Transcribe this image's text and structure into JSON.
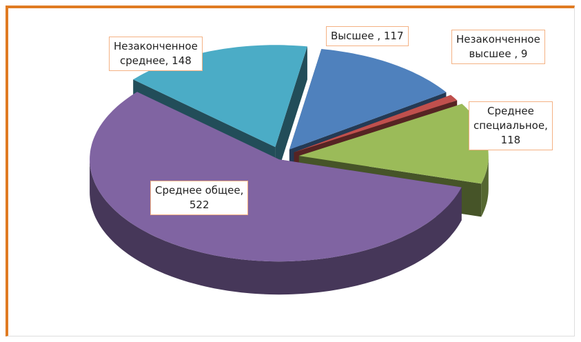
{
  "chart_data": {
    "type": "pie",
    "values": [
      117,
      9,
      118,
      522,
      148
    ],
    "value_labels": [
      "Высшее , 117",
      "Незаконченное\nвысшее , 9",
      "Среднее\nспециальное,\n118",
      "Среднее общее,\n522",
      "Незаконченное\nсреднее, 148"
    ],
    "colors": [
      "#4f81bd",
      "#c0504d",
      "#9bbb59",
      "#8064a2",
      "#4bacc6"
    ],
    "three_d": true,
    "exploded": true
  }
}
